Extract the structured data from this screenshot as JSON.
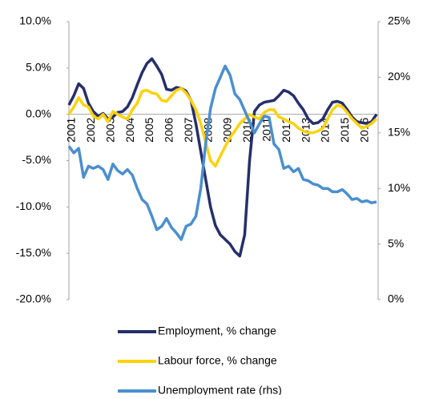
{
  "chart_data": {
    "type": "line",
    "categories": [
      "2001",
      null,
      null,
      null,
      "2002",
      null,
      null,
      null,
      "2003",
      null,
      null,
      null,
      "2004",
      null,
      null,
      null,
      "2005",
      null,
      null,
      null,
      "2006",
      null,
      null,
      null,
      "2007",
      null,
      null,
      null,
      "2008",
      null,
      null,
      null,
      "2009",
      null,
      null,
      null,
      "2010",
      null,
      null,
      null,
      "2011",
      null,
      null,
      null,
      "2012",
      null,
      null,
      null,
      "2013",
      null,
      null,
      null,
      "2014",
      null,
      null,
      null,
      "2015",
      null,
      null,
      null,
      "2016",
      null,
      null,
      null
    ],
    "series": [
      {
        "name": "Employment, % change",
        "color": "#262f6b",
        "axis": "y",
        "values": [
          1.0,
          2.0,
          3.3,
          2.8,
          1.2,
          0.3,
          -0.2,
          0.1,
          -0.5,
          -0.3,
          0.2,
          0.3,
          0.8,
          1.8,
          3.2,
          4.5,
          5.5,
          6.0,
          5.2,
          4.3,
          2.7,
          2.6,
          2.9,
          2.8,
          2.5,
          1.5,
          -1.0,
          -4.0,
          -7.0,
          -10.0,
          -12.0,
          -13.0,
          -13.5,
          -14.0,
          -14.8,
          -15.3,
          -13.0,
          -5.0,
          0.3,
          1.0,
          1.3,
          1.4,
          1.5,
          2.0,
          2.6,
          2.4,
          2.0,
          1.2,
          0.5,
          -0.5,
          -1.0,
          -0.9,
          -0.5,
          0.5,
          1.3,
          1.4,
          1.2,
          0.5,
          -0.3,
          -0.8,
          -0.9,
          -1.0,
          -0.8,
          0.0
        ]
      },
      {
        "name": "Labour force, % change",
        "color": "#fcd20f",
        "axis": "y",
        "values": [
          0.0,
          0.8,
          1.8,
          1.0,
          0.8,
          -0.2,
          -0.5,
          0.0,
          -0.8,
          0.3,
          0.0,
          -0.3,
          -0.5,
          0.5,
          1.2,
          2.5,
          2.6,
          2.3,
          2.2,
          1.5,
          1.4,
          2.0,
          2.6,
          2.8,
          2.3,
          1.5,
          0.5,
          -1.0,
          -3.0,
          -5.0,
          -5.6,
          -4.5,
          -3.5,
          -2.5,
          -1.8,
          -1.0,
          -0.5,
          0.0,
          -0.3,
          -0.5,
          0.2,
          0.5,
          0.5,
          -0.3,
          -0.5,
          -0.8,
          -1.0,
          -1.5,
          -1.8,
          -2.0,
          -2.0,
          -1.8,
          -1.5,
          -0.5,
          0.5,
          1.0,
          0.8,
          0.2,
          -0.5,
          -1.0,
          -1.5,
          -1.3,
          -1.0,
          -0.5
        ]
      },
      {
        "name": "Unemployment rate (rhs)",
        "color": "#4a8fd0",
        "axis": "y2",
        "values": [
          13.8,
          13.2,
          13.6,
          11.0,
          12.0,
          11.8,
          12.0,
          11.7,
          10.8,
          12.2,
          11.6,
          11.3,
          11.7,
          11.2,
          10.0,
          9.0,
          8.6,
          7.5,
          6.3,
          6.6,
          7.3,
          6.5,
          6.0,
          5.4,
          6.6,
          6.8,
          7.5,
          10.0,
          14.0,
          17.2,
          19.0,
          20.0,
          21.0,
          20.2,
          18.5,
          18.0,
          17.0,
          16.0,
          15.0,
          15.8,
          16.5,
          16.4,
          14.0,
          13.5,
          11.8,
          12.0,
          11.5,
          11.8,
          10.8,
          10.7,
          10.4,
          10.3,
          10.0,
          10.0,
          9.7,
          9.7,
          9.9,
          9.5,
          9.0,
          9.1,
          8.8,
          8.9,
          8.7,
          8.8
        ]
      }
    ],
    "ylim": [
      -20,
      10
    ],
    "yticks": [
      {
        "value": -20,
        "label": "-20.0%"
      },
      {
        "value": -15,
        "label": "-15.0%"
      },
      {
        "value": -10,
        "label": "-10.0%"
      },
      {
        "value": -5,
        "label": "-5.0%"
      },
      {
        "value": 0,
        "label": "0.0%"
      },
      {
        "value": 5,
        "label": "5.0%"
      },
      {
        "value": 10,
        "label": "10.0%"
      }
    ],
    "y2lim": [
      0,
      25
    ],
    "y2ticks": [
      {
        "value": 0,
        "label": "0%"
      },
      {
        "value": 5,
        "label": "5%"
      },
      {
        "value": 10,
        "label": "10%"
      },
      {
        "value": 15,
        "label": "15%"
      },
      {
        "value": 20,
        "label": "20%"
      },
      {
        "value": 25,
        "label": "25%"
      }
    ],
    "legend": "bottom"
  }
}
